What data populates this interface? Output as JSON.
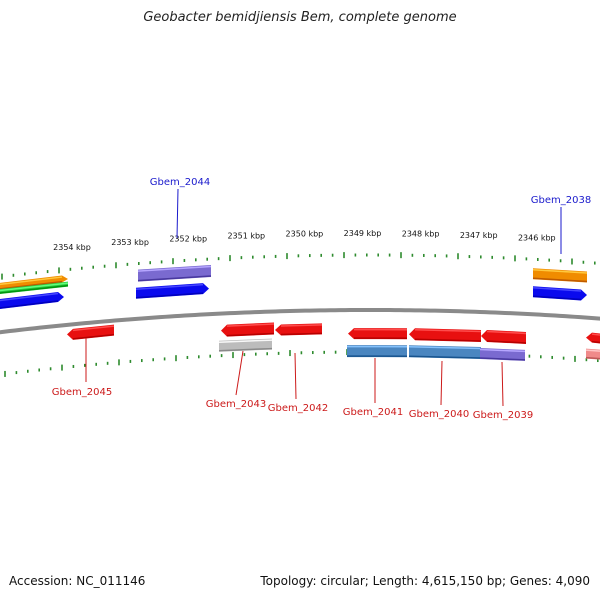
{
  "title": "Geobacter bemidjiensis Bem, complete genome",
  "footer": {
    "accession": "Accession: NC_011146",
    "summary": "Topology: circular; Length: 4,615,150 bp; Genes: 4,090"
  },
  "colors": {
    "backbone": "#8a8a8a",
    "tick": "#2e8b2e",
    "forward_label": "#1a1acc",
    "reverse_label": "#cc1a1a",
    "red": "#e81010",
    "blue": "#0a0aee",
    "purple": "#7a6ad0",
    "orange": "#f08c00",
    "green": "#28c840",
    "steelblue": "#4a86c0",
    "gray": "#bcbcbc",
    "pink": "#f08a8a"
  },
  "scale": {
    "unit": "kbp",
    "ticks": [
      {
        "kbp": 2354,
        "label": "2354 kbp"
      },
      {
        "kbp": 2353,
        "label": "2353 kbp"
      },
      {
        "kbp": 2352,
        "label": "2352 kbp"
      },
      {
        "kbp": 2351,
        "label": "2351 kbp"
      },
      {
        "kbp": 2350,
        "label": "2350 kbp"
      },
      {
        "kbp": 2349,
        "label": "2349 kbp"
      },
      {
        "kbp": 2348,
        "label": "2348 kbp"
      },
      {
        "kbp": 2347,
        "label": "2347 kbp"
      },
      {
        "kbp": 2346,
        "label": "2346 kbp"
      }
    ]
  },
  "gene_labels": [
    {
      "name": "Gbem_2044",
      "strand": "forward"
    },
    {
      "name": "Gbem_2038",
      "strand": "forward"
    },
    {
      "name": "Gbem_2045",
      "strand": "reverse"
    },
    {
      "name": "Gbem_2043",
      "strand": "reverse"
    },
    {
      "name": "Gbem_2042",
      "strand": "reverse"
    },
    {
      "name": "Gbem_2041",
      "strand": "reverse"
    },
    {
      "name": "Gbem_2040",
      "strand": "reverse"
    },
    {
      "name": "Gbem_2039",
      "strand": "reverse"
    }
  ]
}
